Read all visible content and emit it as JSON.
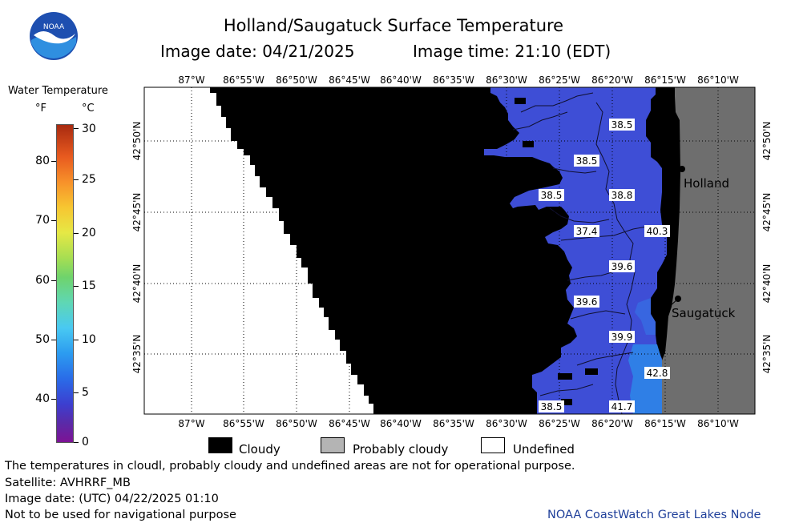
{
  "header": {
    "title": "Holland/Saugatuck Surface Temperature",
    "image_date": "Image date: 04/21/2025",
    "image_time": "Image time: 21:10 (EDT)",
    "logo_text": "NOAA"
  },
  "colorbar": {
    "title": "Water Temperature",
    "f_unit": "°F",
    "c_unit": "°C",
    "f_ticks": [
      "80",
      "70",
      "60",
      "50",
      "40"
    ],
    "c_ticks": [
      "30",
      "25",
      "20",
      "15",
      "10",
      "5",
      "0"
    ]
  },
  "map": {
    "top_lon_labels": [
      "87°W",
      "86°55'W",
      "86°50'W",
      "86°45'W",
      "86°40'W",
      "86°35'W",
      "86°30'W",
      "86°25'W",
      "86°20'W",
      "86°15'W",
      "86°10'W"
    ],
    "bottom_lon_labels": [
      "87°W",
      "86°55'W",
      "86°50'W",
      "86°45'W",
      "86°40'W",
      "86°35'W",
      "86°30'W",
      "86°25'W",
      "86°20'W",
      "86°15'W",
      "86°10'W"
    ],
    "lat_labels": [
      "42°50'N",
      "42°45'N",
      "42°40'N",
      "42°35'N"
    ],
    "places": [
      {
        "name": "Holland"
      },
      {
        "name": "Saugatuck"
      }
    ],
    "temperature_labels": [
      {
        "value": "38.5"
      },
      {
        "value": "38.5"
      },
      {
        "value": "38.5"
      },
      {
        "value": "38.8"
      },
      {
        "value": "37.4"
      },
      {
        "value": "40.3"
      },
      {
        "value": "39.6"
      },
      {
        "value": "39.6"
      },
      {
        "value": "39.9"
      },
      {
        "value": "42.8"
      },
      {
        "value": "38.5"
      },
      {
        "value": "41.7"
      }
    ],
    "colors": {
      "cloudy": "#000000",
      "probably_cloudy": "#6e6e6e",
      "undefined": "#ffffff",
      "water": "#3e4fd8",
      "land": "#6e6e6e"
    }
  },
  "legend": {
    "cloudy": "Cloudy",
    "probably_cloudy": "Probably cloudy",
    "undefined": "Undefined"
  },
  "footer": {
    "note": "The temperatures in cloudl, probably cloudy and undefined areas are not for operational purpose.",
    "satellite": "Satellite: AVHRRF_MB",
    "utc_date": "Image date: (UTC) 04/22/2025  01:10",
    "navigation": "Not to be used for navigational purpose",
    "credit": "NOAA CoastWatch Great Lakes Node"
  }
}
